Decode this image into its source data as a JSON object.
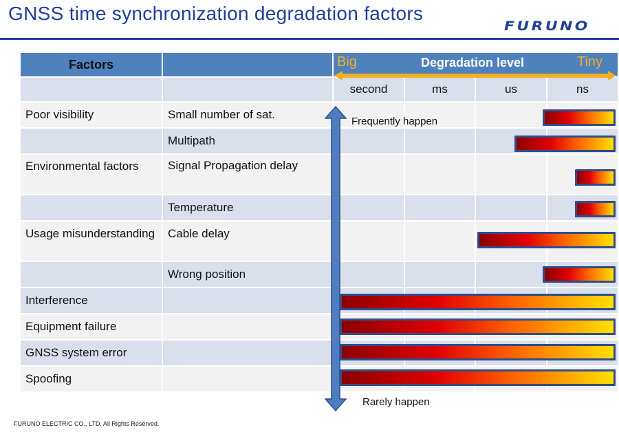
{
  "title": "GNSS time synchronization degradation factors",
  "logo": "FURUNO",
  "footer": "FURUNO ELECTRIC CO., LTD. All Rights Reserved.",
  "header": {
    "factors": "Factors",
    "degradation_level": "Degradation level",
    "big": "Big",
    "tiny": "Tiny",
    "units": [
      "second",
      "ms",
      "us",
      "ns"
    ]
  },
  "notes": {
    "top": "Frequently happen",
    "bottom": "Rarely happen"
  },
  "rows": [
    {
      "factor": "Poor visibility",
      "detail": "Small number of sat."
    },
    {
      "factor": "",
      "detail": "Multipath"
    },
    {
      "factor": "Environmental factors",
      "detail": "Signal Propagation delay"
    },
    {
      "factor": "",
      "detail": "Temperature"
    },
    {
      "factor": "Usage misunderstanding",
      "detail": "Cable delay"
    },
    {
      "factor": "",
      "detail": "Wrong position"
    },
    {
      "factor": "Interference",
      "detail": ""
    },
    {
      "factor": "Equipment failure",
      "detail": ""
    },
    {
      "factor": "GNSS system error",
      "detail": ""
    },
    {
      "factor": "Spoofing",
      "detail": ""
    }
  ],
  "colors": {
    "accent": "#1f3f9a",
    "header_bg": "#4f81bd",
    "label_orange": "#f0b020"
  }
}
